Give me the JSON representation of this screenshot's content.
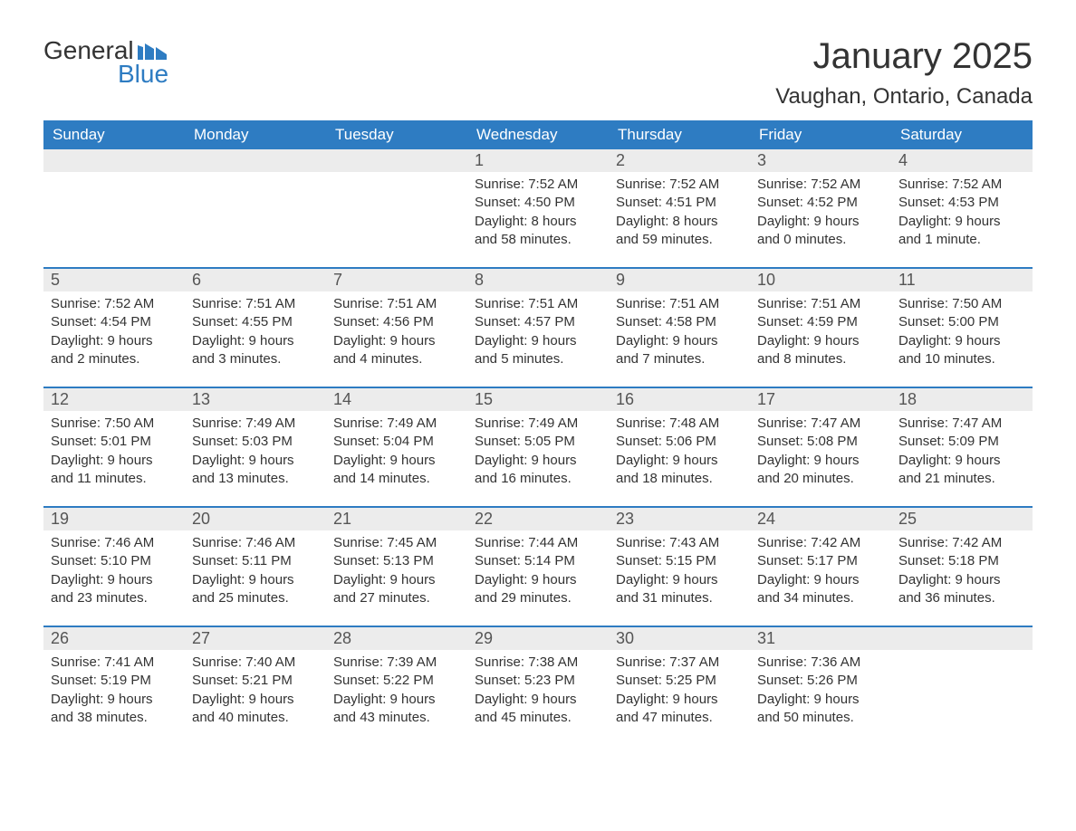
{
  "logo": {
    "general": "General",
    "blue": "Blue",
    "flag_color": "#2e7cc2"
  },
  "title": "January 2025",
  "location": "Vaughan, Ontario, Canada",
  "colors": {
    "header_bg": "#2e7cc2",
    "header_text": "#ffffff",
    "daynum_bg": "#ececec",
    "week_border": "#2e7cc2",
    "body_text": "#333333"
  },
  "day_names": [
    "Sunday",
    "Monday",
    "Tuesday",
    "Wednesday",
    "Thursday",
    "Friday",
    "Saturday"
  ],
  "weeks": [
    [
      {
        "day": null
      },
      {
        "day": null
      },
      {
        "day": null
      },
      {
        "day": 1,
        "sunrise": "7:52 AM",
        "sunset": "4:50 PM",
        "daylight": "8 hours and 58 minutes."
      },
      {
        "day": 2,
        "sunrise": "7:52 AM",
        "sunset": "4:51 PM",
        "daylight": "8 hours and 59 minutes."
      },
      {
        "day": 3,
        "sunrise": "7:52 AM",
        "sunset": "4:52 PM",
        "daylight": "9 hours and 0 minutes."
      },
      {
        "day": 4,
        "sunrise": "7:52 AM",
        "sunset": "4:53 PM",
        "daylight": "9 hours and 1 minute."
      }
    ],
    [
      {
        "day": 5,
        "sunrise": "7:52 AM",
        "sunset": "4:54 PM",
        "daylight": "9 hours and 2 minutes."
      },
      {
        "day": 6,
        "sunrise": "7:51 AM",
        "sunset": "4:55 PM",
        "daylight": "9 hours and 3 minutes."
      },
      {
        "day": 7,
        "sunrise": "7:51 AM",
        "sunset": "4:56 PM",
        "daylight": "9 hours and 4 minutes."
      },
      {
        "day": 8,
        "sunrise": "7:51 AM",
        "sunset": "4:57 PM",
        "daylight": "9 hours and 5 minutes."
      },
      {
        "day": 9,
        "sunrise": "7:51 AM",
        "sunset": "4:58 PM",
        "daylight": "9 hours and 7 minutes."
      },
      {
        "day": 10,
        "sunrise": "7:51 AM",
        "sunset": "4:59 PM",
        "daylight": "9 hours and 8 minutes."
      },
      {
        "day": 11,
        "sunrise": "7:50 AM",
        "sunset": "5:00 PM",
        "daylight": "9 hours and 10 minutes."
      }
    ],
    [
      {
        "day": 12,
        "sunrise": "7:50 AM",
        "sunset": "5:01 PM",
        "daylight": "9 hours and 11 minutes."
      },
      {
        "day": 13,
        "sunrise": "7:49 AM",
        "sunset": "5:03 PM",
        "daylight": "9 hours and 13 minutes."
      },
      {
        "day": 14,
        "sunrise": "7:49 AM",
        "sunset": "5:04 PM",
        "daylight": "9 hours and 14 minutes."
      },
      {
        "day": 15,
        "sunrise": "7:49 AM",
        "sunset": "5:05 PM",
        "daylight": "9 hours and 16 minutes."
      },
      {
        "day": 16,
        "sunrise": "7:48 AM",
        "sunset": "5:06 PM",
        "daylight": "9 hours and 18 minutes."
      },
      {
        "day": 17,
        "sunrise": "7:47 AM",
        "sunset": "5:08 PM",
        "daylight": "9 hours and 20 minutes."
      },
      {
        "day": 18,
        "sunrise": "7:47 AM",
        "sunset": "5:09 PM",
        "daylight": "9 hours and 21 minutes."
      }
    ],
    [
      {
        "day": 19,
        "sunrise": "7:46 AM",
        "sunset": "5:10 PM",
        "daylight": "9 hours and 23 minutes."
      },
      {
        "day": 20,
        "sunrise": "7:46 AM",
        "sunset": "5:11 PM",
        "daylight": "9 hours and 25 minutes."
      },
      {
        "day": 21,
        "sunrise": "7:45 AM",
        "sunset": "5:13 PM",
        "daylight": "9 hours and 27 minutes."
      },
      {
        "day": 22,
        "sunrise": "7:44 AM",
        "sunset": "5:14 PM",
        "daylight": "9 hours and 29 minutes."
      },
      {
        "day": 23,
        "sunrise": "7:43 AM",
        "sunset": "5:15 PM",
        "daylight": "9 hours and 31 minutes."
      },
      {
        "day": 24,
        "sunrise": "7:42 AM",
        "sunset": "5:17 PM",
        "daylight": "9 hours and 34 minutes."
      },
      {
        "day": 25,
        "sunrise": "7:42 AM",
        "sunset": "5:18 PM",
        "daylight": "9 hours and 36 minutes."
      }
    ],
    [
      {
        "day": 26,
        "sunrise": "7:41 AM",
        "sunset": "5:19 PM",
        "daylight": "9 hours and 38 minutes."
      },
      {
        "day": 27,
        "sunrise": "7:40 AM",
        "sunset": "5:21 PM",
        "daylight": "9 hours and 40 minutes."
      },
      {
        "day": 28,
        "sunrise": "7:39 AM",
        "sunset": "5:22 PM",
        "daylight": "9 hours and 43 minutes."
      },
      {
        "day": 29,
        "sunrise": "7:38 AM",
        "sunset": "5:23 PM",
        "daylight": "9 hours and 45 minutes."
      },
      {
        "day": 30,
        "sunrise": "7:37 AM",
        "sunset": "5:25 PM",
        "daylight": "9 hours and 47 minutes."
      },
      {
        "day": 31,
        "sunrise": "7:36 AM",
        "sunset": "5:26 PM",
        "daylight": "9 hours and 50 minutes."
      },
      {
        "day": null
      }
    ]
  ],
  "labels": {
    "sunrise": "Sunrise: ",
    "sunset": "Sunset: ",
    "daylight": "Daylight: "
  }
}
